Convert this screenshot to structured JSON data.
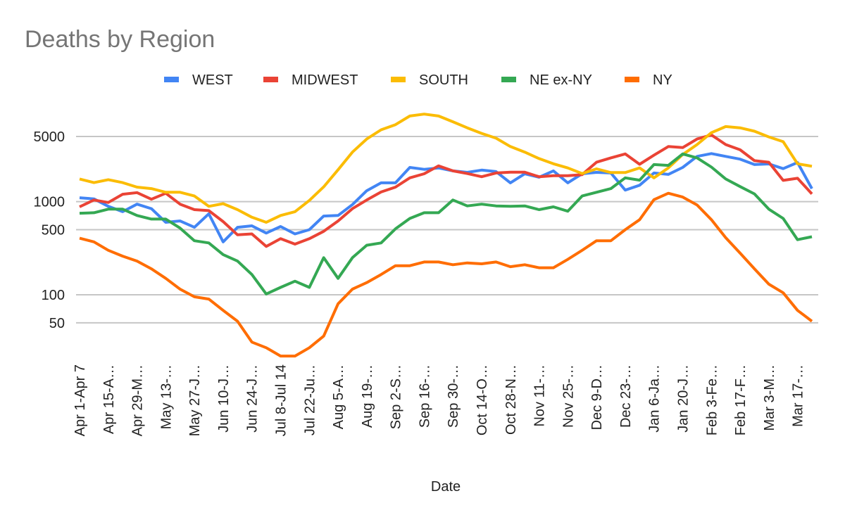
{
  "chart_data": {
    "type": "line",
    "title": "Deaths by Region",
    "xlabel": "Date",
    "ylabel": "",
    "yscale": "log",
    "ylim": [
      15,
      10000
    ],
    "yticks": [
      50,
      100,
      500,
      1000,
      5000
    ],
    "ytick_labels": [
      "50",
      "100",
      "500",
      "1000",
      "5000"
    ],
    "grid": true,
    "legend_position": "top",
    "xtick_labels": [
      "Apr 1-Apr 7",
      "Apr 15-A…",
      "Apr 29-M…",
      "May 13-…",
      "May 27-J…",
      "Jun 10-J…",
      "Jun 24-J…",
      "Jul 8-Jul 14",
      "Jul 22-Ju…",
      "Aug 5-A…",
      "Aug 19-…",
      "Sep 2-S…",
      "Sep 16-…",
      "Sep 30-…",
      "Oct 14-O…",
      "Oct 28-N…",
      "Nov 11-…",
      "Nov 25-…",
      "Dec 9-D…",
      "Dec 23-…",
      "Jan 6-Ja…",
      "Jan 20-J…",
      "Feb 3-Fe…",
      "Feb 17-F…",
      "Mar 3-M…",
      "Mar 17-…"
    ],
    "points_per_label": 2,
    "series": [
      {
        "name": "WEST",
        "color": "#4285f4",
        "values": [
          1100,
          1070,
          890,
          780,
          940,
          840,
          600,
          620,
          530,
          740,
          370,
          530,
          550,
          460,
          540,
          450,
          500,
          700,
          710,
          930,
          1310,
          1590,
          1590,
          2330,
          2220,
          2300,
          2140,
          2060,
          2180,
          2100,
          1590,
          1990,
          1830,
          2140,
          1590,
          1990,
          2060,
          2030,
          1330,
          1500,
          2030,
          1960,
          2330,
          3060,
          3280,
          3060,
          2860,
          2500,
          2540,
          2260,
          2630,
          1380
        ]
      },
      {
        "name": "MIDWEST",
        "color": "#ea4335",
        "values": [
          880,
          1040,
          980,
          1200,
          1250,
          1060,
          1230,
          940,
          820,
          800,
          610,
          440,
          450,
          330,
          400,
          350,
          400,
          480,
          620,
          840,
          1040,
          1270,
          1430,
          1800,
          1990,
          2420,
          2140,
          2000,
          1850,
          2030,
          2070,
          2070,
          1850,
          1900,
          1900,
          1950,
          2650,
          2950,
          3250,
          2520,
          3150,
          3900,
          3800,
          4700,
          5200,
          4100,
          3600,
          2750,
          2650,
          1690,
          1780,
          1210
        ]
      },
      {
        "name": "SOUTH",
        "color": "#fbbc04",
        "values": [
          1750,
          1600,
          1720,
          1600,
          1430,
          1380,
          1260,
          1260,
          1150,
          890,
          950,
          820,
          680,
          600,
          710,
          780,
          1030,
          1440,
          2200,
          3400,
          4700,
          5900,
          6700,
          8300,
          8700,
          8300,
          7200,
          6200,
          5400,
          4800,
          3900,
          3400,
          2900,
          2550,
          2300,
          2000,
          2250,
          2050,
          2050,
          2300,
          1800,
          2300,
          3200,
          4100,
          5500,
          6400,
          6200,
          5700,
          4950,
          4400,
          2550,
          2400
        ]
      },
      {
        "name": "NE ex-NY",
        "color": "#34a853",
        "values": [
          750,
          760,
          830,
          830,
          710,
          650,
          650,
          520,
          380,
          360,
          270,
          230,
          165,
          102,
          120,
          140,
          120,
          250,
          150,
          250,
          340,
          360,
          510,
          660,
          760,
          760,
          1040,
          900,
          940,
          900,
          890,
          900,
          820,
          880,
          790,
          1150,
          1260,
          1380,
          1800,
          1700,
          2500,
          2450,
          3250,
          2950,
          2350,
          1750,
          1450,
          1210,
          830,
          660,
          390,
          420
        ]
      },
      {
        "name": "NY",
        "color": "#ff6d01",
        "values": [
          405,
          370,
          300,
          260,
          230,
          190,
          150,
          115,
          95,
          90,
          68,
          52,
          31,
          27,
          22,
          22,
          27,
          36,
          80,
          115,
          135,
          165,
          205,
          205,
          225,
          225,
          210,
          220,
          215,
          225,
          200,
          210,
          195,
          195,
          240,
          300,
          380,
          380,
          500,
          640,
          1050,
          1230,
          1120,
          920,
          640,
          410,
          280,
          190,
          130,
          105,
          68,
          52
        ]
      }
    ]
  }
}
